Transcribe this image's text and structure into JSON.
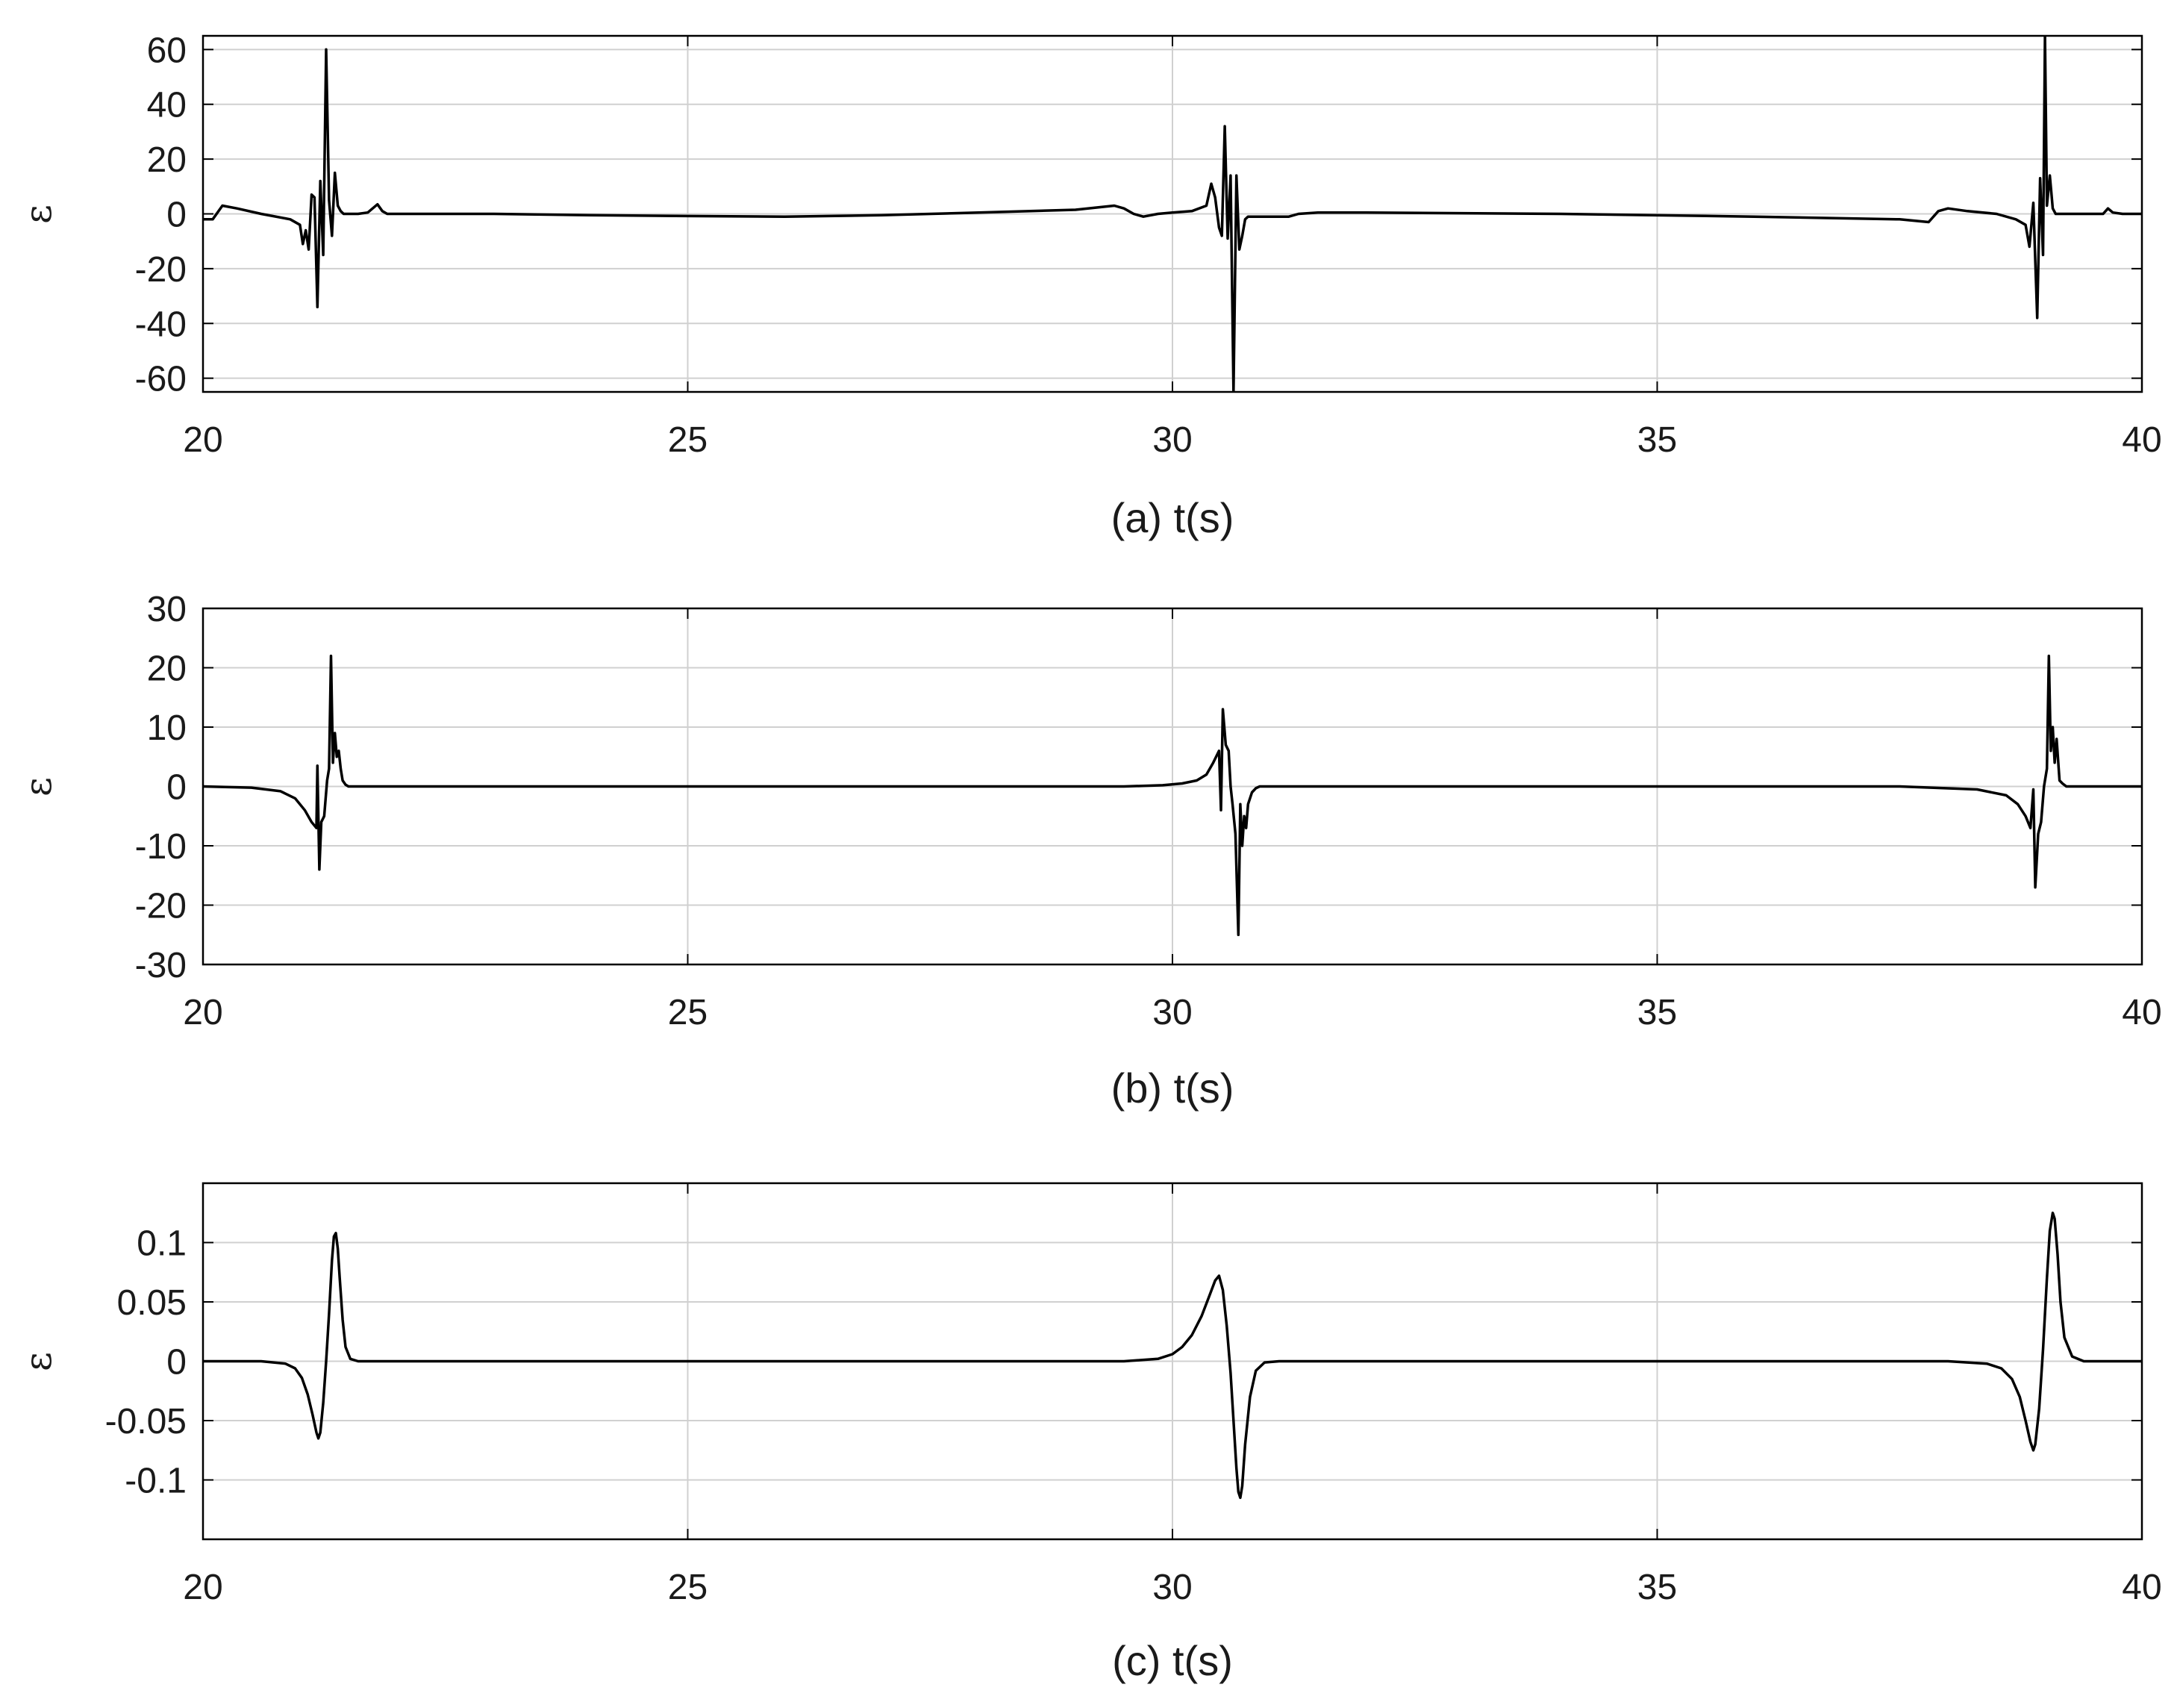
{
  "chart_data": [
    {
      "type": "line",
      "panel_label": "(a)  t(s)",
      "xlabel": "t(s)",
      "ylabel": "ε",
      "xlim": [
        20,
        40
      ],
      "ylim": [
        -65,
        65
      ],
      "xticks": [
        20,
        25,
        30,
        35,
        40
      ],
      "yticks": [
        -60,
        -40,
        -20,
        0,
        20,
        40,
        60
      ],
      "grid": true,
      "color": "#000000",
      "x": [
        20.0,
        20.1,
        20.2,
        20.35,
        20.6,
        20.9,
        21.0,
        21.03,
        21.06,
        21.09,
        21.12,
        21.15,
        21.18,
        21.21,
        21.24,
        21.27,
        21.3,
        21.33,
        21.36,
        21.39,
        21.42,
        21.45,
        21.5,
        21.6,
        21.7,
        21.75,
        21.8,
        21.85,
        21.9,
        22.0,
        23.0,
        24.0,
        25.0,
        26.0,
        27.0,
        28.0,
        29.0,
        29.4,
        29.5,
        29.6,
        29.7,
        29.85,
        30.0,
        30.2,
        30.35,
        30.4,
        30.44,
        30.48,
        30.51,
        30.54,
        30.57,
        30.6,
        30.63,
        30.66,
        30.69,
        30.72,
        30.75,
        30.78,
        30.82,
        30.86,
        30.9,
        31.0,
        31.2,
        31.3,
        31.5,
        32.0,
        34.0,
        36.0,
        37.5,
        37.8,
        37.9,
        38.0,
        38.2,
        38.5,
        38.7,
        38.8,
        38.84,
        38.88,
        38.92,
        38.95,
        38.98,
        39.0,
        39.02,
        39.05,
        39.08,
        39.11,
        39.14,
        39.17,
        39.2,
        39.25,
        39.3,
        39.5,
        39.6,
        39.65,
        39.7,
        39.8,
        40.0
      ],
      "y": [
        -2,
        -2,
        3,
        2,
        0,
        -2,
        -4,
        -11,
        -6,
        -13,
        7,
        6,
        -34,
        12,
        -15,
        60,
        5,
        -8,
        15,
        3,
        1,
        0,
        0,
        0,
        0.5,
        2,
        3.5,
        1,
        0,
        0,
        0,
        -0.5,
        -0.8,
        -1,
        -0.5,
        0.5,
        1.5,
        3,
        2,
        0,
        -1,
        0,
        0.5,
        1,
        3,
        11,
        6,
        -5,
        -8,
        32,
        -9,
        14,
        -65,
        14,
        -13,
        -8,
        -2,
        -1,
        -1,
        -1,
        -1,
        -1,
        -1,
        0,
        0.5,
        0.5,
        0,
        -1,
        -2,
        -3,
        1,
        2,
        1,
        0,
        -2,
        -4,
        -12,
        4,
        -38,
        13,
        -15,
        65,
        3,
        14,
        2,
        0,
        0,
        0,
        0,
        0,
        0,
        0,
        0,
        2,
        0.5,
        0,
        0
      ]
    },
    {
      "type": "line",
      "panel_label": "(b)   t(s)",
      "xlabel": "t(s)",
      "ylabel": "ε",
      "xlim": [
        20,
        40
      ],
      "ylim": [
        -30,
        30
      ],
      "xticks": [
        20,
        25,
        30,
        35,
        40
      ],
      "yticks": [
        -30,
        -20,
        -10,
        0,
        10,
        20,
        30
      ],
      "grid": true,
      "color": "#000000",
      "x": [
        20.0,
        20.5,
        20.8,
        20.95,
        21.05,
        21.12,
        21.17,
        21.18,
        21.2,
        21.22,
        21.25,
        21.28,
        21.3,
        21.32,
        21.34,
        21.36,
        21.38,
        21.4,
        21.42,
        21.44,
        21.47,
        21.5,
        21.55,
        21.6,
        22.0,
        25.0,
        28.0,
        29.5,
        29.9,
        30.1,
        30.25,
        30.35,
        30.42,
        30.48,
        30.5,
        30.52,
        30.55,
        30.58,
        30.6,
        30.62,
        30.65,
        30.68,
        30.7,
        30.72,
        30.74,
        30.76,
        30.78,
        30.82,
        30.86,
        30.9,
        31.0,
        31.3,
        34.0,
        37.5,
        38.3,
        38.6,
        38.72,
        38.8,
        38.85,
        38.88,
        38.9,
        38.93,
        38.96,
        38.99,
        39.02,
        39.04,
        39.06,
        39.08,
        39.1,
        39.12,
        39.15,
        39.18,
        39.22,
        39.3,
        39.5,
        40.0
      ],
      "y": [
        0,
        -0.2,
        -0.8,
        -2,
        -4,
        -6,
        -7,
        3.5,
        -14,
        -6,
        -5,
        1,
        3,
        22,
        4,
        9,
        5,
        6,
        3,
        1,
        0.3,
        0,
        0,
        0,
        0,
        0,
        0,
        0,
        0.2,
        0.5,
        1,
        2,
        4,
        6,
        -4,
        13,
        7,
        6,
        0,
        -3,
        -8,
        -25,
        -3,
        -10,
        -5,
        -7,
        -3,
        -1,
        -0.3,
        0,
        0,
        0,
        0,
        0,
        -0.5,
        -1.5,
        -3,
        -5,
        -7,
        -0.5,
        -17,
        -8,
        -6,
        0,
        3,
        22,
        6,
        10,
        4,
        8,
        1,
        0.5,
        0,
        0,
        0,
        0
      ]
    },
    {
      "type": "line",
      "panel_label": "(c)   t(s)",
      "xlabel": "t(s)",
      "ylabel": "ε",
      "xlim": [
        20,
        40
      ],
      "ylim": [
        -0.15,
        0.15
      ],
      "xticks": [
        20,
        25,
        30,
        35,
        40
      ],
      "yticks": [
        -0.1,
        -0.05,
        0,
        0.05,
        0.1
      ],
      "grid": true,
      "color": "#000000",
      "x": [
        20.0,
        20.6,
        20.85,
        20.95,
        21.02,
        21.08,
        21.13,
        21.17,
        21.19,
        21.21,
        21.24,
        21.27,
        21.3,
        21.33,
        21.35,
        21.37,
        21.39,
        21.41,
        21.44,
        21.47,
        21.52,
        21.6,
        22.0,
        26.0,
        29.5,
        29.85,
        30.0,
        30.1,
        30.2,
        30.3,
        30.38,
        30.44,
        30.48,
        30.52,
        30.56,
        30.6,
        30.63,
        30.66,
        30.68,
        30.7,
        30.72,
        30.75,
        30.8,
        30.86,
        30.95,
        31.1,
        34.0,
        38.0,
        38.4,
        38.55,
        38.66,
        38.74,
        38.8,
        38.85,
        38.88,
        38.9,
        38.94,
        38.98,
        39.02,
        39.05,
        39.08,
        39.1,
        39.13,
        39.16,
        39.2,
        39.28,
        39.4,
        40.0
      ],
      "y": [
        0,
        0,
        -0.002,
        -0.006,
        -0.014,
        -0.028,
        -0.045,
        -0.06,
        -0.065,
        -0.06,
        -0.035,
        0.0,
        0.04,
        0.085,
        0.105,
        0.108,
        0.095,
        0.07,
        0.035,
        0.012,
        0.002,
        0,
        0,
        0,
        0,
        0.002,
        0.006,
        0.012,
        0.022,
        0.038,
        0.055,
        0.068,
        0.072,
        0.06,
        0.03,
        -0.01,
        -0.05,
        -0.09,
        -0.11,
        -0.115,
        -0.105,
        -0.07,
        -0.03,
        -0.008,
        -0.001,
        0,
        0,
        0,
        -0.002,
        -0.006,
        -0.015,
        -0.03,
        -0.05,
        -0.068,
        -0.075,
        -0.07,
        -0.04,
        0.01,
        0.07,
        0.11,
        0.125,
        0.12,
        0.09,
        0.05,
        0.02,
        0.004,
        0.0,
        0
      ]
    }
  ]
}
